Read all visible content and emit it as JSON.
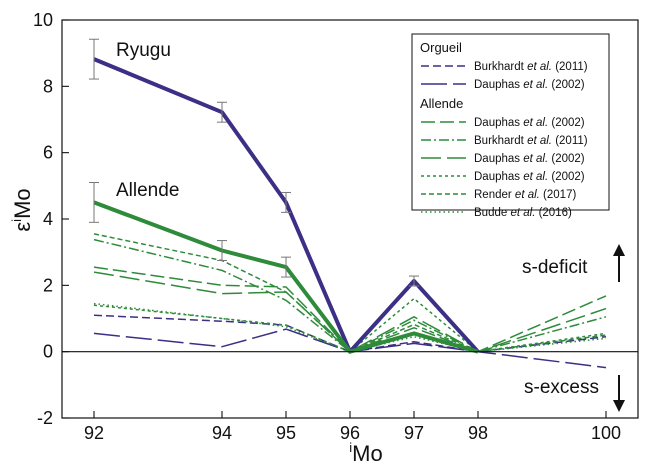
{
  "chart_data": {
    "type": "line",
    "xlabel": "Mo",
    "xlabel_sup": "i",
    "ylabel_main": "ε",
    "ylabel_sup": "i",
    "ylabel_tail": "Mo",
    "xlim": [
      91.5,
      100.5
    ],
    "ylim": [
      -2,
      10
    ],
    "xticks": [
      92,
      94,
      95,
      96,
      97,
      98,
      100
    ],
    "yticks": [
      -2,
      0,
      2,
      4,
      6,
      8,
      10
    ],
    "grid": false,
    "legend_position": "top-right",
    "legend_groups": [
      "Orgueil",
      "Allende"
    ],
    "annotations": {
      "ryugu": "Ryugu",
      "allende": "Allende",
      "s_deficit": "s-deficit",
      "s_excess": "s-excess"
    },
    "series": [
      {
        "name": "Ryugu",
        "role": "main",
        "color": "#3b2f86",
        "dash": "solid",
        "x": [
          92,
          94,
          95,
          96,
          97,
          98
        ],
        "y": [
          8.82,
          7.22,
          4.5,
          0,
          2.13,
          0
        ],
        "err": [
          0.6,
          0.3,
          0.3,
          0,
          0.15,
          0
        ]
      },
      {
        "name": "Allende",
        "role": "main",
        "color": "#2e8b3a",
        "dash": "solid",
        "x": [
          92,
          94,
          95,
          96,
          97,
          98
        ],
        "y": [
          4.5,
          3.05,
          2.55,
          0,
          0.55,
          0
        ],
        "err": [
          0.6,
          0.3,
          0.3,
          0,
          0,
          0
        ]
      },
      {
        "group": "Orgueil",
        "author": "Burkhardt ",
        "etal": "et al.",
        "year": " (2011)",
        "color": "#3b2f86",
        "dash": "8,4",
        "x": [
          92,
          94,
          95,
          96,
          97,
          98,
          100
        ],
        "y": [
          1.1,
          0.92,
          0.8,
          0,
          0.3,
          0,
          0.45
        ]
      },
      {
        "group": "Orgueil",
        "author": "Dauphas ",
        "etal": "et al.",
        "year": " (2002)",
        "color": "#3b2f86",
        "dash": "26,6",
        "x": [
          92,
          94,
          95,
          96,
          97,
          98,
          100
        ],
        "y": [
          0.55,
          0.15,
          0.68,
          0,
          0.25,
          0,
          -0.48
        ]
      },
      {
        "group": "Allende",
        "author": "Dauphas ",
        "etal": "et al.",
        "year": " (2002)",
        "color": "#2e8b3a",
        "dash": "14,5",
        "x": [
          92,
          94,
          95,
          96,
          97,
          98,
          100
        ],
        "y": [
          2.55,
          2.0,
          1.95,
          0,
          0.72,
          0,
          1.68
        ]
      },
      {
        "group": "Allende",
        "author": "Burkhardt ",
        "etal": "et al.",
        "year": " (2011)",
        "color": "#2e8b3a",
        "dash": "10,3,2,3",
        "x": [
          92,
          94,
          95,
          96,
          97,
          98,
          100
        ],
        "y": [
          3.38,
          2.45,
          1.55,
          0,
          0.95,
          0,
          1.05
        ]
      },
      {
        "group": "Allende",
        "author": "Dauphas ",
        "etal": "et al.",
        "year": " (2002)",
        "color": "#2e8b3a",
        "dash": "20,6",
        "x": [
          92,
          94,
          95,
          96,
          97,
          98,
          100
        ],
        "y": [
          2.4,
          1.75,
          1.8,
          0,
          1.05,
          0,
          1.3
        ]
      },
      {
        "group": "Allende",
        "author": "Dauphas ",
        "etal": "et al.",
        "year": " (2002)",
        "color": "#2e8b3a",
        "dash": "3,3",
        "x": [
          92,
          94,
          95,
          96,
          97,
          98,
          100
        ],
        "y": [
          1.4,
          1.0,
          0.8,
          0,
          1.6,
          0,
          0.55
        ]
      },
      {
        "group": "Allende",
        "author": "Render ",
        "etal": "et al.",
        "year": " (2017)",
        "color": "#2e8b3a",
        "dash": "5,3",
        "x": [
          92,
          94,
          95,
          96,
          97,
          98,
          100
        ],
        "y": [
          3.55,
          2.75,
          1.8,
          0,
          0.82,
          0,
          0.5
        ]
      },
      {
        "group": "Allende",
        "author": "Budde ",
        "etal": "et al.",
        "year": " (2016)",
        "color": "#2e8b3a",
        "dash": "1.5,3",
        "x": [
          92,
          94,
          95,
          96,
          97,
          98,
          100
        ],
        "y": [
          1.45,
          1.0,
          0.75,
          0,
          0.45,
          0,
          0.4
        ]
      }
    ]
  }
}
